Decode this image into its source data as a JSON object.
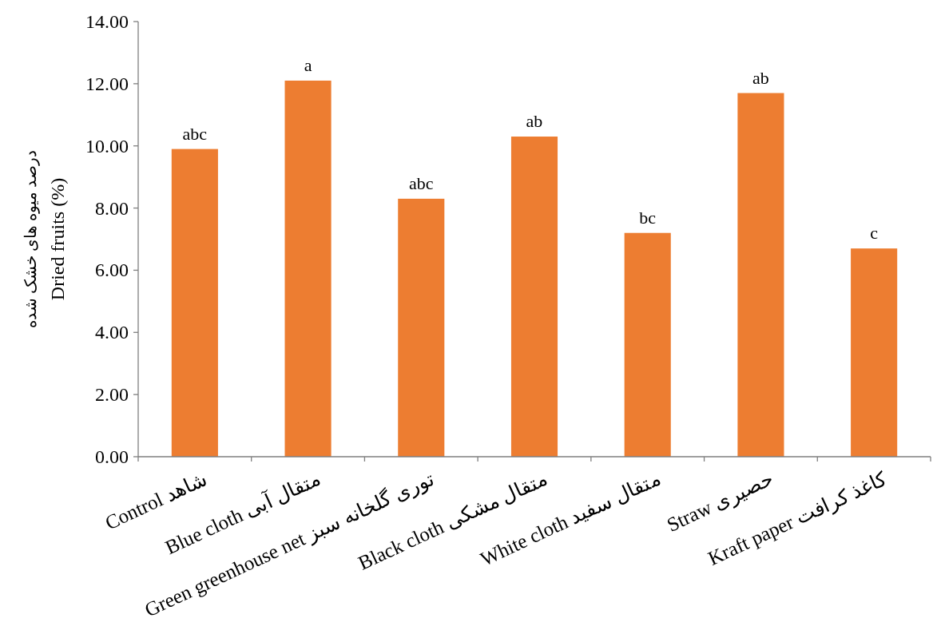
{
  "chart_data": {
    "type": "bar",
    "ylabel": "درصد میوه های خشک شده\nDried fruits (%)",
    "categories": [
      "Control شاهد",
      "Blue cloth متقال آبی",
      "Green greenhouse net توری گلخانه سبز",
      "Black cloth متقال مشکی",
      "White cloth متقال سفید",
      "Straw  حصیری",
      "Kraft paper کاغذ کرافت"
    ],
    "values": [
      9.9,
      12.1,
      8.3,
      10.3,
      7.2,
      11.7,
      6.7
    ],
    "value_labels": [
      "abc",
      "a",
      "abc",
      "ab",
      "bc",
      "ab",
      "c"
    ],
    "color": "#ed7d31",
    "ylim": [
      0,
      14
    ],
    "yticks": [
      {
        "value": 0,
        "label": "0.00"
      },
      {
        "value": 2,
        "label": "2.00"
      },
      {
        "value": 4,
        "label": "4.00"
      },
      {
        "value": 6,
        "label": "6.00"
      },
      {
        "value": 8,
        "label": "8.00"
      },
      {
        "value": 10,
        "label": "10.00"
      },
      {
        "value": 12,
        "label": "12.00"
      },
      {
        "value": 14,
        "label": "14.00"
      }
    ],
    "grid": false
  }
}
